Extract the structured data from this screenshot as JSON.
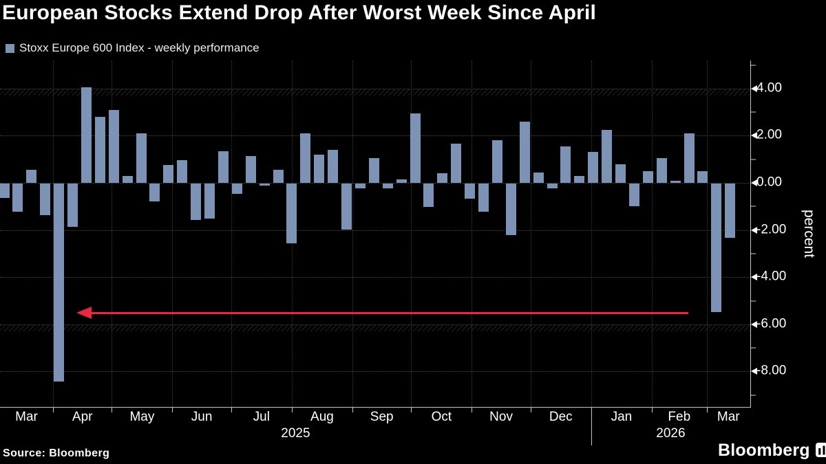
{
  "title": "European Stocks Extend Drop After Worst Week Since April",
  "legend": {
    "label": "Stoxx Europe 600 Index - weekly performance",
    "swatch_color": "#7d93b5"
  },
  "source": "Source: Bloomberg",
  "brand": "Bloomberg",
  "colors": {
    "background": "#000000",
    "bar": "#7d93b5",
    "arrow": "#e8283e",
    "text": "#ffffff",
    "grid": "#4a4a4a",
    "axis": "#c8c8c8"
  },
  "chart_data": {
    "type": "bar",
    "title": "European Stocks Extend Drop After Worst Week Since April",
    "series_name": "Stoxx Europe 600 Index - weekly performance",
    "xlabel": "",
    "ylabel": "percent",
    "ylim": [
      -9.5,
      5.2
    ],
    "grid": true,
    "y_ticks": [
      4,
      2,
      0,
      -2,
      -4,
      -6,
      -8
    ],
    "y_tick_labels": [
      "4.00",
      "2.00",
      "0.00",
      "-2.00",
      "-4.00",
      "-6.00",
      "-8.00"
    ],
    "y_minor_ticks": [
      5,
      3,
      1,
      -1,
      -3,
      -5,
      -7,
      -9
    ],
    "hatch_band_levels": [
      4,
      -6
    ],
    "x_month_labels": [
      "Mar",
      "Apr",
      "May",
      "Jun",
      "Jul",
      "Aug",
      "Sep",
      "Oct",
      "Nov",
      "Dec",
      "Jan",
      "Feb",
      "Mar"
    ],
    "year_labels": [
      "2025",
      "2026"
    ],
    "weeks": [
      {
        "week_ending": "2025-03-07",
        "value": -0.6
      },
      {
        "week_ending": "2025-03-14",
        "value": -1.2
      },
      {
        "week_ending": "2025-03-21",
        "value": 0.55
      },
      {
        "week_ending": "2025-03-28",
        "value": -1.35
      },
      {
        "week_ending": "2025-04-04",
        "value": -8.4
      },
      {
        "week_ending": "2025-04-11",
        "value": -1.85
      },
      {
        "week_ending": "2025-04-18",
        "value": 4.05
      },
      {
        "week_ending": "2025-04-25",
        "value": 2.8
      },
      {
        "week_ending": "2025-05-02",
        "value": 3.1
      },
      {
        "week_ending": "2025-05-09",
        "value": 0.3
      },
      {
        "week_ending": "2025-05-16",
        "value": 2.1
      },
      {
        "week_ending": "2025-05-23",
        "value": -0.75
      },
      {
        "week_ending": "2025-05-30",
        "value": 0.75
      },
      {
        "week_ending": "2025-06-06",
        "value": 0.95
      },
      {
        "week_ending": "2025-06-13",
        "value": -1.55
      },
      {
        "week_ending": "2025-06-20",
        "value": -1.5
      },
      {
        "week_ending": "2025-06-27",
        "value": 1.35
      },
      {
        "week_ending": "2025-07-04",
        "value": -0.45
      },
      {
        "week_ending": "2025-07-11",
        "value": 1.15
      },
      {
        "week_ending": "2025-07-18",
        "value": -0.1
      },
      {
        "week_ending": "2025-07-25",
        "value": 0.55
      },
      {
        "week_ending": "2025-08-01",
        "value": -2.55
      },
      {
        "week_ending": "2025-08-08",
        "value": 2.1
      },
      {
        "week_ending": "2025-08-15",
        "value": 1.2
      },
      {
        "week_ending": "2025-08-22",
        "value": 1.4
      },
      {
        "week_ending": "2025-08-29",
        "value": -1.95
      },
      {
        "week_ending": "2025-09-05",
        "value": -0.2
      },
      {
        "week_ending": "2025-09-12",
        "value": 1.05
      },
      {
        "week_ending": "2025-09-19",
        "value": -0.2
      },
      {
        "week_ending": "2025-09-26",
        "value": 0.15
      },
      {
        "week_ending": "2025-10-03",
        "value": 2.95
      },
      {
        "week_ending": "2025-10-10",
        "value": -1.0
      },
      {
        "week_ending": "2025-10-17",
        "value": 0.4
      },
      {
        "week_ending": "2025-10-24",
        "value": 1.65
      },
      {
        "week_ending": "2025-10-31",
        "value": -0.65
      },
      {
        "week_ending": "2025-11-07",
        "value": -1.2
      },
      {
        "week_ending": "2025-11-14",
        "value": 1.8
      },
      {
        "week_ending": "2025-11-21",
        "value": -2.2
      },
      {
        "week_ending": "2025-11-28",
        "value": 2.6
      },
      {
        "week_ending": "2025-12-05",
        "value": 0.45
      },
      {
        "week_ending": "2025-12-12",
        "value": -0.2
      },
      {
        "week_ending": "2025-12-19",
        "value": 1.55
      },
      {
        "week_ending": "2025-12-26",
        "value": 0.3
      },
      {
        "week_ending": "2026-01-02",
        "value": 1.3
      },
      {
        "week_ending": "2026-01-09",
        "value": 2.25
      },
      {
        "week_ending": "2026-01-16",
        "value": 0.8
      },
      {
        "week_ending": "2026-01-23",
        "value": -0.95
      },
      {
        "week_ending": "2026-01-30",
        "value": 0.5
      },
      {
        "week_ending": "2026-02-06",
        "value": 1.05
      },
      {
        "week_ending": "2026-02-13",
        "value": 0.1
      },
      {
        "week_ending": "2026-02-20",
        "value": 2.1
      },
      {
        "week_ending": "2026-02-27",
        "value": 0.5
      },
      {
        "week_ending": "2026-03-06",
        "value": -5.45
      },
      {
        "week_ending": "2026-03-13",
        "value": -2.3
      }
    ],
    "annotation": {
      "shape": "horizontal-arrow",
      "direction": "left",
      "level_percent": -5.5,
      "color": "#e8283e",
      "meaning": "latest weekly drop shown matching the early-April 2025 plunge week"
    }
  }
}
